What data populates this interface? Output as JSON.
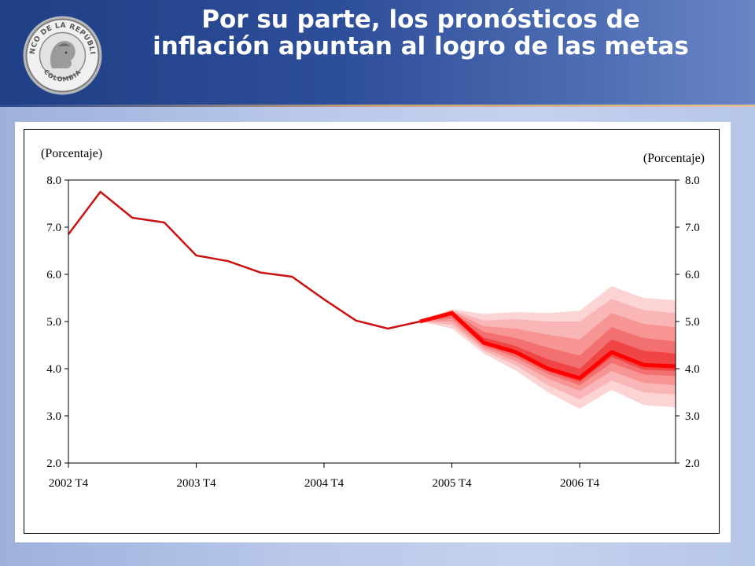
{
  "slide": {
    "title": "Por su parte, los pronósticos de inflación apuntan al logro de las metas",
    "seal": {
      "text_top": "BANCO DE LA REPÚBLICA",
      "text_bottom": "COLOMBIA",
      "colors": {
        "ring": "#8a8a8a",
        "face": "#e7e7e7"
      }
    }
  },
  "chart_data": {
    "type": "line",
    "title": "",
    "xlabel": "",
    "ylabel_left": "(Porcentaje)",
    "ylabel_right": "(Porcentaje)",
    "ylim": [
      2.0,
      8.0
    ],
    "yticks": [
      "2.0",
      "3.0",
      "4.0",
      "5.0",
      "6.0",
      "7.0",
      "8.0"
    ],
    "xticks": [
      "2002 T4",
      "2003 T4",
      "2004 T4",
      "2005 T4",
      "2006 T4"
    ],
    "grid": false,
    "series": [
      {
        "role": "historical",
        "color": "#cc1111",
        "x": [
          "2002 T4",
          "2003 T1",
          "2003 T2",
          "2003 T3",
          "2003 T4",
          "2004 T1",
          "2004 T2",
          "2004 T3",
          "2004 T4",
          "2005 T1",
          "2005 T2",
          "2005 T3",
          "2005 T4"
        ],
        "values": [
          6.85,
          7.75,
          7.2,
          7.1,
          6.4,
          6.28,
          6.04,
          5.95,
          5.47,
          5.02,
          4.85,
          5.0,
          5.18
        ]
      },
      {
        "role": "fan-central",
        "color": "#ff0000",
        "x": [
          "2005 T3",
          "2005 T4",
          "2006 T1",
          "2006 T2",
          "2006 T3",
          "2006 T4",
          "2007 T1",
          "2007 T2",
          "2007 T3"
        ],
        "values": [
          5.0,
          5.18,
          4.55,
          4.35,
          4.0,
          3.8,
          4.35,
          4.08,
          4.05
        ]
      }
    ],
    "fan_chart": {
      "x": [
        "2005 T3",
        "2005 T4",
        "2006 T1",
        "2006 T2",
        "2006 T3",
        "2006 T4",
        "2007 T1",
        "2007 T2",
        "2007 T3"
      ],
      "bands": [
        {
          "upper": [
            5.0,
            5.26,
            5.16,
            5.2,
            5.18,
            5.23,
            5.75,
            5.5,
            5.45
          ],
          "lower": [
            5.0,
            4.85,
            4.32,
            3.96,
            3.5,
            3.15,
            3.55,
            3.23,
            3.18
          ],
          "color": "#fcd4d4"
        },
        {
          "upper": [
            5.0,
            5.24,
            5.02,
            5.05,
            5.0,
            5.0,
            5.48,
            5.24,
            5.18
          ],
          "lower": [
            5.0,
            4.93,
            4.38,
            4.07,
            3.65,
            3.35,
            3.75,
            3.5,
            3.45
          ],
          "color": "#fab6b6"
        },
        {
          "upper": [
            5.0,
            5.22,
            4.9,
            4.85,
            4.72,
            4.62,
            5.18,
            4.95,
            4.88
          ],
          "lower": [
            5.0,
            5.0,
            4.43,
            4.16,
            3.79,
            3.53,
            3.95,
            3.7,
            3.65
          ],
          "color": "#f79595"
        },
        {
          "upper": [
            5.0,
            5.2,
            4.78,
            4.65,
            4.45,
            4.28,
            4.88,
            4.65,
            4.58
          ],
          "lower": [
            5.0,
            5.07,
            4.48,
            4.24,
            3.89,
            3.65,
            4.12,
            3.88,
            3.84
          ],
          "color": "#f37070"
        },
        {
          "upper": [
            5.0,
            5.19,
            4.66,
            4.48,
            4.2,
            4.0,
            4.62,
            4.38,
            4.32
          ],
          "lower": [
            5.0,
            5.13,
            4.52,
            4.31,
            3.95,
            3.72,
            4.25,
            3.98,
            3.95
          ],
          "color": "#ef4545"
        }
      ]
    },
    "axes": {
      "left_ticks": true,
      "right_ticks": true
    }
  }
}
